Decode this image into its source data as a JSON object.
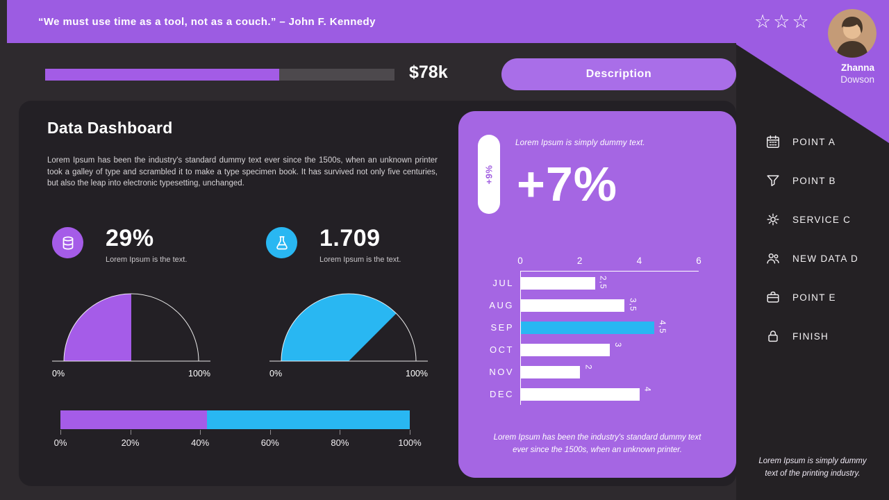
{
  "header": {
    "quote": "“We must use time as a tool, not as a couch.” – John F. Kennedy"
  },
  "toolbar": {
    "amount": "$78k",
    "progress_percent": 67,
    "description_label": "Description"
  },
  "dashboard": {
    "title": "Data Dashboard",
    "description": "Lorem Ipsum has been the industry's standard dummy text ever since the 1500s, when an unknown printer took a galley of type and scrambled it to make a type specimen book. It has survived not only five centuries, but also the leap into electronic typesetting, unchanged.",
    "stats": [
      {
        "icon": "database-icon",
        "value": "29%",
        "caption": "Lorem Ipsum is the text.",
        "color": "#a55ce8"
      },
      {
        "icon": "flask-icon",
        "value": "1.709",
        "caption": "Lorem Ipsum is the text.",
        "color": "#29b7f2"
      }
    ]
  },
  "promo": {
    "badge": "+9%",
    "subtitle": "Lorem Ipsum is simply dummy text.",
    "headline": "+7%",
    "footer": "Lorem Ipsum has been the industry's standard dummy text ever since the 1500s, when an unknown printer."
  },
  "sidebar": {
    "stars": 3,
    "profile": {
      "first_name": "Zhanna",
      "last_name": "Dowson"
    },
    "menu": [
      {
        "icon": "calendar-icon",
        "label": "POINT A"
      },
      {
        "icon": "filter-icon",
        "label": "POINT B"
      },
      {
        "icon": "gear-icon",
        "label": "SERVICE C"
      },
      {
        "icon": "users-icon",
        "label": "NEW DATA D"
      },
      {
        "icon": "briefcase-icon",
        "label": "POINT E"
      },
      {
        "icon": "lock-icon",
        "label": "FINISH"
      }
    ],
    "footer": "Lorem Ipsum is simply dummy text of the printing industry."
  },
  "chart_data": [
    {
      "type": "gauge",
      "name": "purple-gauge",
      "percent": 50,
      "color": "#a55ce8",
      "min_label": "0%",
      "max_label": "100%"
    },
    {
      "type": "gauge",
      "name": "cyan-gauge",
      "percent": 75,
      "color": "#29b7f2",
      "min_label": "0%",
      "max_label": "100%"
    },
    {
      "type": "bar",
      "subtype": "stacked-horizontal",
      "name": "share-bar",
      "segments": [
        {
          "value": 42,
          "color": "#a55ce8"
        },
        {
          "value": 58,
          "color": "#29b7f2"
        }
      ],
      "tick_labels": [
        "0%",
        "20%",
        "40%",
        "60%",
        "80%",
        "100%"
      ],
      "xlim": [
        0,
        100
      ]
    },
    {
      "type": "bar",
      "subtype": "horizontal",
      "name": "monthly-bar-chart",
      "categories": [
        "JUL",
        "AUG",
        "SEP",
        "OCT",
        "NOV",
        "DEC"
      ],
      "values": [
        2.5,
        3.5,
        4.5,
        3,
        2,
        4
      ],
      "value_labels": [
        "2,5",
        "3,5",
        "4,5",
        "3",
        "2",
        "4"
      ],
      "highlight_index": 2,
      "bar_color": "#ffffff",
      "highlight_color": "#29b7f2",
      "xlim": [
        0,
        6
      ],
      "x_ticks": [
        0,
        2,
        4,
        6
      ],
      "grid": false,
      "legend": false
    }
  ]
}
